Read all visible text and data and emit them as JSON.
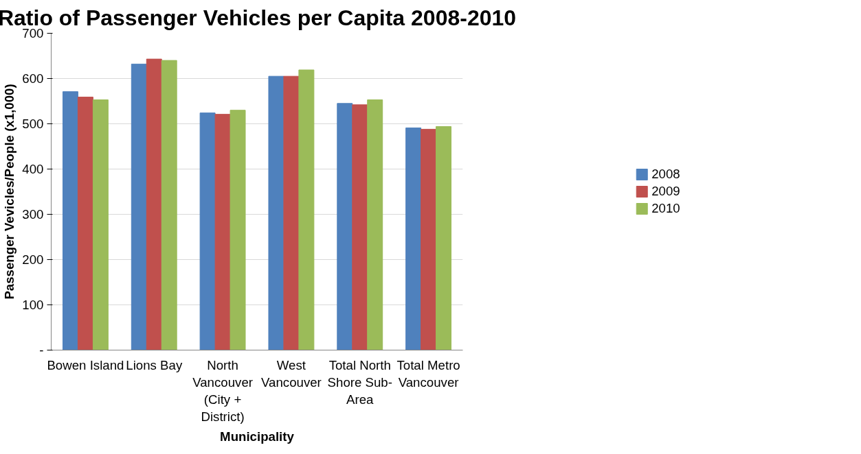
{
  "chart_data": {
    "type": "bar",
    "title": "Ratio of Passenger Vehicles per Capita 2008-2010",
    "xlabel": "Municipality",
    "ylabel": "Passenger Vevicles/People (x1,000)",
    "categories": [
      "Bowen Island",
      "Lions Bay",
      "North Vancouver (City + District)",
      "West Vancouver",
      "Total North Shore Sub-Area",
      "Total Metro Vancouver"
    ],
    "series": [
      {
        "name": "2008",
        "color": "#4f81bd",
        "values": [
          571,
          632,
          524,
          605,
          545,
          491
        ]
      },
      {
        "name": "2009",
        "color": "#c0504d",
        "values": [
          559,
          643,
          521,
          605,
          542,
          488
        ]
      },
      {
        "name": "2010",
        "color": "#9bbb59",
        "values": [
          553,
          640,
          530,
          619,
          553,
          494
        ]
      }
    ],
    "ylim": [
      0,
      700
    ],
    "yticks": [
      {
        "value": 0,
        "label": "-"
      },
      100,
      200,
      300,
      400,
      500,
      600,
      700
    ],
    "grid": "y",
    "legend": "right"
  }
}
